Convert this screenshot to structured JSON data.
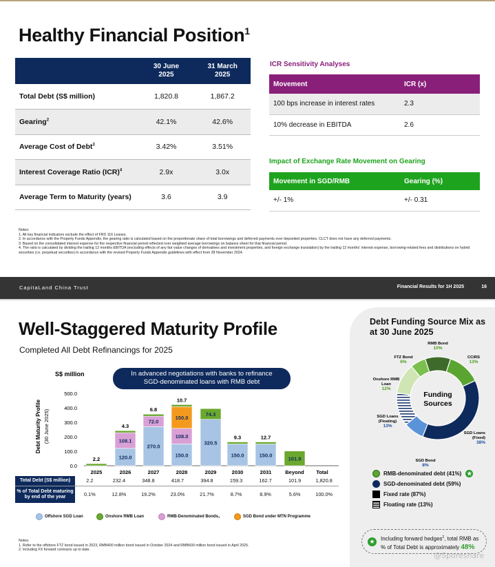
{
  "slide1": {
    "title": "Healthy Financial Position",
    "title_sup": "1",
    "table": {
      "headers": [
        "",
        "30 June 2025",
        "31 March 2025"
      ],
      "rows": [
        {
          "label": "Total Debt (S$ million)",
          "sup": "",
          "v1": "1,820.8",
          "v2": "1,867.2"
        },
        {
          "label": "Gearing",
          "sup": "2",
          "v1": "42.1%",
          "v2": "42.6%"
        },
        {
          "label": "Average Cost of Debt",
          "sup": "3",
          "v1": "3.42%",
          "v2": "3.51%"
        },
        {
          "label": "Interest Coverage Ratio (ICR)",
          "sup": "4",
          "v1": "2.9x",
          "v2": "3.0x"
        },
        {
          "label": "Average Term to Maturity (years)",
          "sup": "",
          "v1": "3.6",
          "v2": "3.9"
        }
      ]
    },
    "icr": {
      "title": "ICR Sensitivity Analyses",
      "headers": [
        "Movement",
        "ICR (x)"
      ],
      "rows": [
        {
          "movement": "100 bps increase in interest rates",
          "value": "2.3"
        },
        {
          "movement": "10% decrease in EBITDA",
          "value": "2.6"
        }
      ]
    },
    "fx": {
      "title": "Impact of Exchange Rate Movement on Gearing",
      "headers": [
        "Movement in SGD/RMB",
        "Gearing (%)"
      ],
      "rows": [
        {
          "movement": "+/- 1%",
          "value": "+/- 0.31"
        }
      ]
    },
    "notes": {
      "title": "Notes:",
      "items": [
        "1.   All key financial indicators exclude the effect of FRS 116 Leases.",
        "2.   In accordance with the Property Funds Appendix, the gearing ratio is calculated based on the proportionate share of total borrowings and deferred payments over deposited properties. CLCT does not have any deferred payments.",
        "3.   Based on the consolidated interest expense for the respective financial period reflected over weighted average borrowings on balance sheet for that financial period.",
        "4.   The ratio is calculated by dividing the trailing 12 months EBITDA (excluding effects of any fair value changes of derivatives and investment properties, and foreign exchange translation) by the trailing 12 months' interest expense, borrowing-related fees and distributions on hybrid securities (i.e. perpetual securities) in accordance with the revised Property Funds Appendix guidelines with effect from 28 November 2024."
      ]
    },
    "footer": {
      "left": "CapitaLand China Trust",
      "right": "Financial Results for 1H 2025",
      "page": "16"
    }
  },
  "slide2": {
    "title": "Well-Staggered Maturity Profile",
    "subtitle": "Completed All Debt Refinancings for 2025",
    "callout": [
      "In advanced negotiations with banks to refinance",
      "SGD-denominated loans with RMB debt"
    ],
    "colors": {
      "offshore_sgd": "#a8c4e4",
      "onshore_rmb": "#6aa82e",
      "rmb_bond": "#d9a0d6",
      "mtn": "#f39a1e",
      "navy": "#0e2a5c"
    },
    "chart_data": {
      "type": "bar",
      "stacked": true,
      "unit_label": "S$ million",
      "ylabel": "Debt Maturity Profile (30 June 2025)",
      "ylim": [
        0,
        500
      ],
      "yticks": [
        "0.0",
        "100.0",
        "200.0",
        "300.0",
        "400.0",
        "500.0"
      ],
      "categories": [
        "2025",
        "2026",
        "2027",
        "2028",
        "2029",
        "2030",
        "2031",
        "Beyond",
        "Total"
      ],
      "series": [
        {
          "name": "Offshore SGD Loan",
          "values": [
            0,
            120.0,
            270.0,
            150.0,
            320.5,
            150.0,
            150.0,
            0,
            null
          ]
        },
        {
          "name": "Onshore RMB Loan",
          "values": [
            2.2,
            4.3,
            6.8,
            10.7,
            74.3,
            9.3,
            12.7,
            101.9,
            null
          ]
        },
        {
          "name": "RMB-Denominated Bonds",
          "values": [
            0,
            108.1,
            72.0,
            108.0,
            0,
            0,
            0,
            0,
            null
          ]
        },
        {
          "name": "SGD Bond under MTN Programme",
          "values": [
            0,
            0,
            0,
            150.0,
            0,
            0,
            0,
            0,
            null
          ]
        }
      ],
      "labels": [
        [
          "2.2"
        ],
        [
          "120.0",
          "108.1",
          "4.3"
        ],
        [
          "270.0",
          "72.0",
          "6.8"
        ],
        [
          "150.0",
          "108.0",
          "150.0",
          "10.7"
        ],
        [
          "320.5",
          "74.3"
        ],
        [
          "150.0",
          "9.3"
        ],
        [
          "150.0",
          "12.7"
        ],
        [
          "101.9"
        ],
        []
      ],
      "table": {
        "rows": [
          {
            "label": "Total Debt (S$ million)",
            "values": [
              "2.2",
              "232.4",
              "348.8",
              "418.7",
              "394.8",
              "159.3",
              "162.7",
              "101.9",
              "1,820.8"
            ]
          },
          {
            "label": "% of Total Debt maturing by end of the year",
            "values": [
              "0.1%",
              "12.8%",
              "19.2%",
              "23.0%",
              "21.7%",
              "8.7%",
              "8.9%",
              "5.6%",
              "100.0%"
            ]
          }
        ]
      }
    },
    "legend": [
      {
        "label": "Offshore SGD Loan",
        "color": "#a8c4e4"
      },
      {
        "label": "Onshore RMB Loan",
        "color": "#6aa82e"
      },
      {
        "label": "RMB-Denominated Bonds",
        "sup": "1",
        "color": "#d9a0d6"
      },
      {
        "label": "SGD Bond under MTN Programme",
        "color": "#f39a1e"
      }
    ],
    "notes": {
      "title": "Notes:",
      "items": [
        "1.   Refer to the offshore FTZ bond issued in 2023, RMB400 million bond issued in October 2024 and RMB600 million bond issued in April 2025.",
        "2.   Including FX forward contracts up to date."
      ]
    },
    "panel": {
      "title": "Debt Funding Source Mix as at 30 June 2025",
      "center": [
        "Funding",
        "Sources"
      ],
      "pie": [
        {
          "name": "RMB Bond",
          "pct": "10%",
          "value": 10,
          "color": "#3f6b2a"
        },
        {
          "name": "CCIRS",
          "pct": "13%",
          "value": 13,
          "color": "#5aa532"
        },
        {
          "name": "SGD Loans (Fixed)",
          "pct": "38%",
          "value": 38,
          "color": "#0e2a5c"
        },
        {
          "name": "SGD Bond",
          "pct": "8%",
          "value": 8,
          "color": "#5b93d8"
        },
        {
          "name": "SGD Loans (Floating)",
          "pct": "13%",
          "value": 13,
          "color": "#0e2a5c"
        },
        {
          "name": "Onshore RMB Loan",
          "pct": "12%",
          "value": 12,
          "color": "#cfe6b4"
        },
        {
          "name": "FTZ Bond",
          "pct": "6%",
          "value": 6,
          "color": "#7bbf4e"
        }
      ],
      "legend": [
        {
          "label": "RMB-denominated debt (41%)"
        },
        {
          "label": "SGD-denominated debt (59%)"
        },
        {
          "label": "Fixed rate (87%)"
        },
        {
          "label": "Floating rate (13%)"
        }
      ],
      "pill": {
        "line1": "Including forward hedges",
        "sup": "2",
        "line1b": ", total RMB as",
        "line2": "% of Total Debt is approximately",
        "value": "48%"
      }
    },
    "watermark": "@Sporeshare"
  }
}
